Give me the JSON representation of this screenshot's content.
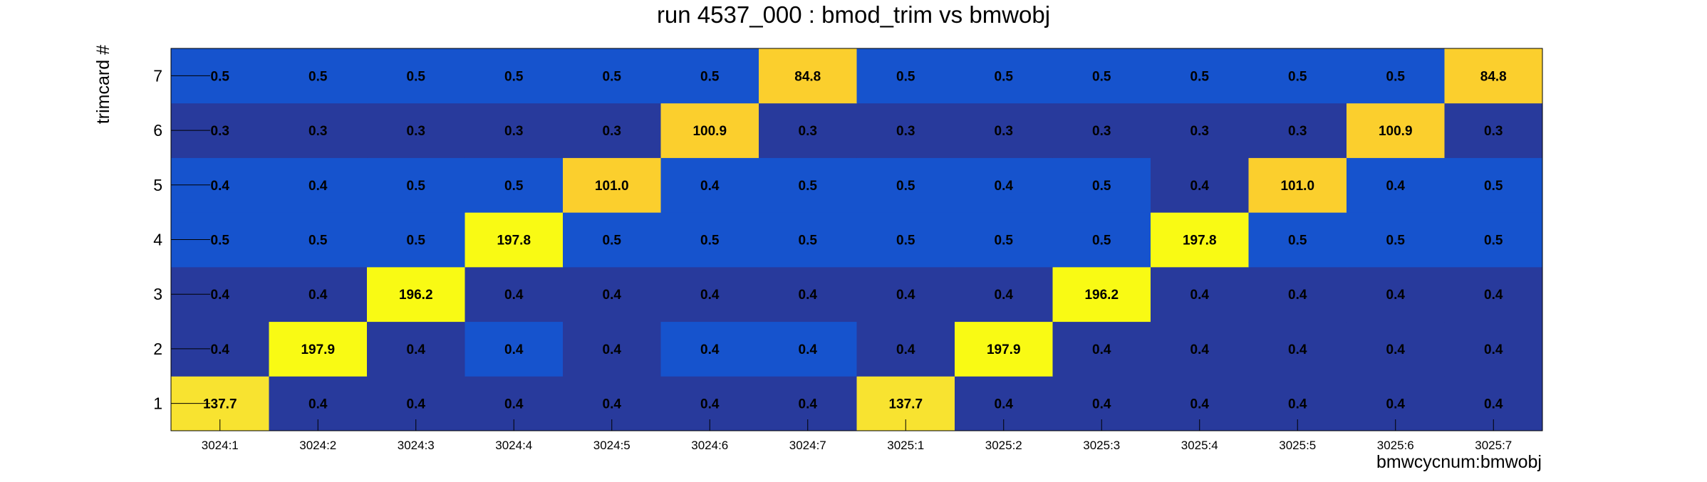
{
  "chart_data": {
    "type": "heatmap",
    "title": "run 4537_000 : bmod_trim vs bmwobj",
    "xlabel": "bmwcycnum:bmwobj",
    "ylabel": "trimcard #",
    "x_categories": [
      "3024:1",
      "3024:2",
      "3024:3",
      "3024:4",
      "3024:5",
      "3024:6",
      "3024:7",
      "3025:1",
      "3025:2",
      "3025:3",
      "3025:4",
      "3025:5",
      "3025:6",
      "3025:7"
    ],
    "y_categories": [
      "1",
      "2",
      "3",
      "4",
      "5",
      "6",
      "7"
    ],
    "values": [
      [
        "137.7",
        "0.4",
        "0.4",
        "0.4",
        "0.4",
        "0.4",
        "0.4",
        "137.7",
        "0.4",
        "0.4",
        "0.4",
        "0.4",
        "0.4",
        "0.4"
      ],
      [
        "0.4",
        "197.9",
        "0.4",
        "0.4",
        "0.4",
        "0.4",
        "0.4",
        "0.4",
        "197.9",
        "0.4",
        "0.4",
        "0.4",
        "0.4",
        "0.4"
      ],
      [
        "0.4",
        "0.4",
        "196.2",
        "0.4",
        "0.4",
        "0.4",
        "0.4",
        "0.4",
        "0.4",
        "196.2",
        "0.4",
        "0.4",
        "0.4",
        "0.4"
      ],
      [
        "0.5",
        "0.5",
        "0.5",
        "197.8",
        "0.5",
        "0.5",
        "0.5",
        "0.5",
        "0.5",
        "0.5",
        "197.8",
        "0.5",
        "0.5",
        "0.5"
      ],
      [
        "0.4",
        "0.4",
        "0.5",
        "0.5",
        "101.0",
        "0.4",
        "0.5",
        "0.5",
        "0.4",
        "0.5",
        "0.4",
        "101.0",
        "0.4",
        "0.5"
      ],
      [
        "0.3",
        "0.3",
        "0.3",
        "0.3",
        "0.3",
        "100.9",
        "0.3",
        "0.3",
        "0.3",
        "0.3",
        "0.3",
        "0.3",
        "100.9",
        "0.3"
      ],
      [
        "0.5",
        "0.5",
        "0.5",
        "0.5",
        "0.5",
        "0.5",
        "84.8",
        "0.5",
        "0.5",
        "0.5",
        "0.5",
        "0.5",
        "0.5",
        "84.8"
      ]
    ],
    "cell_colors": [
      [
        "#f8e330",
        "#283a9c",
        "#283a9c",
        "#283a9c",
        "#283a9c",
        "#283a9c",
        "#283a9c",
        "#f8e330",
        "#283a9c",
        "#283a9c",
        "#283a9c",
        "#283a9c",
        "#283a9c",
        "#283a9c"
      ],
      [
        "#283a9c",
        "#f9fa14",
        "#283a9c",
        "#1653cd",
        "#283a9c",
        "#1653cd",
        "#1653cd",
        "#283a9c",
        "#f9fa14",
        "#283a9c",
        "#283a9c",
        "#283a9c",
        "#283a9c",
        "#283a9c"
      ],
      [
        "#283a9c",
        "#283a9c",
        "#f9fa14",
        "#283a9c",
        "#283a9c",
        "#283a9c",
        "#283a9c",
        "#283a9c",
        "#283a9c",
        "#f9fa14",
        "#283a9c",
        "#283a9c",
        "#283a9c",
        "#283a9c"
      ],
      [
        "#1653cd",
        "#1653cd",
        "#1653cd",
        "#f9fa14",
        "#1653cd",
        "#1653cd",
        "#1653cd",
        "#1653cd",
        "#1653cd",
        "#1653cd",
        "#f9fa14",
        "#1653cd",
        "#1653cd",
        "#1653cd"
      ],
      [
        "#1653cd",
        "#1653cd",
        "#1653cd",
        "#1653cd",
        "#fbcf2d",
        "#1653cd",
        "#1653cd",
        "#1653cd",
        "#1653cd",
        "#1653cd",
        "#283a9c",
        "#fbcf2d",
        "#1653cd",
        "#1653cd"
      ],
      [
        "#283a9c",
        "#283a9c",
        "#283a9c",
        "#283a9c",
        "#283a9c",
        "#fbcf2d",
        "#283a9c",
        "#283a9c",
        "#283a9c",
        "#283a9c",
        "#283a9c",
        "#283a9c",
        "#fbcf2d",
        "#283a9c"
      ],
      [
        "#1653cd",
        "#1653cd",
        "#1653cd",
        "#1653cd",
        "#1653cd",
        "#1653cd",
        "#fbcf2d",
        "#1653cd",
        "#1653cd",
        "#1653cd",
        "#1653cd",
        "#1653cd",
        "#1653cd",
        "#fbcf2d"
      ]
    ],
    "grid": false,
    "legend": "none"
  }
}
